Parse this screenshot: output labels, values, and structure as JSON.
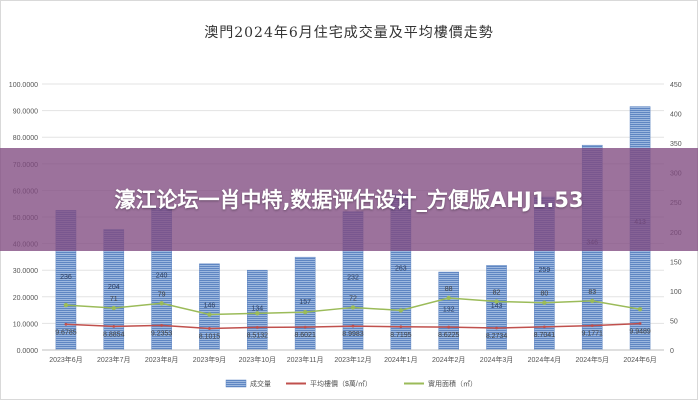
{
  "banner": {
    "text": "濠江论坛一肖中特,数据评估设计_方便版AHJ1.53"
  },
  "chart_data": {
    "type": "bar",
    "title": "澳門2024年6月住宅成交量及平均樓價走勢",
    "categories": [
      "2023年6月",
      "2023年7月",
      "2023年8月",
      "2023年9月",
      "2023年10月",
      "2023年11月",
      "2023年12月",
      "2024年1月",
      "2024年2月",
      "2024年3月",
      "2024年4月",
      "2024年5月",
      "2024年6月"
    ],
    "ylim_left": [
      0,
      100
    ],
    "yticks_left": [
      "0.0000",
      "10.0000",
      "20.0000",
      "30.0000",
      "40.0000",
      "50.0000",
      "60.0000",
      "70.0000",
      "80.0000",
      "90.0000",
      "100.0000"
    ],
    "ylim_right": [
      0,
      450
    ],
    "yticks_right": [
      "0",
      "50",
      "100",
      "150",
      "200",
      "250",
      "300",
      "350",
      "400",
      "450"
    ],
    "series": [
      {
        "name": "成交量",
        "kind": "bar",
        "axis": "left",
        "color": "#7b9fd0",
        "values": [
          52.5,
          45.3,
          53.4,
          32.4,
          30.0,
          34.9,
          52.0,
          58.5,
          29.3,
          31.8,
          57.5,
          77.0,
          91.5
        ],
        "labels": [
          "236",
          "204",
          "240",
          "146",
          "134",
          "157",
          "232",
          "263",
          "132",
          "143",
          "259",
          "346",
          "413"
        ]
      },
      {
        "name": "平均樓價（$萬/㎡）",
        "kind": "line",
        "axis": "left",
        "color": "#c0504d",
        "values": [
          9.6785,
          8.8854,
          9.2353,
          8.1015,
          8.5132,
          8.6021,
          8.9983,
          8.7195,
          8.6225,
          8.2734,
          8.7041,
          9.1771,
          9.9489
        ],
        "labels": [
          "9.6785",
          "8.8854",
          "9.2353",
          "8.1015",
          "8.5132",
          "8.6021",
          "8.9983",
          "8.7195",
          "8.6225",
          "8.2734",
          "8.7041",
          "9.1771",
          "9.9489"
        ]
      },
      {
        "name": "實用面積（㎡）",
        "kind": "line",
        "axis": "right",
        "color": "#9bbb59",
        "values": [
          76,
          71,
          79,
          60,
          62,
          64,
          72,
          67,
          88,
          82,
          80,
          83,
          69
        ],
        "labels": [
          "",
          "71",
          "79",
          "",
          "",
          "",
          "72",
          "",
          "88",
          "82",
          "80",
          "83",
          ""
        ]
      }
    ],
    "grid": true,
    "legend": "bottom"
  }
}
